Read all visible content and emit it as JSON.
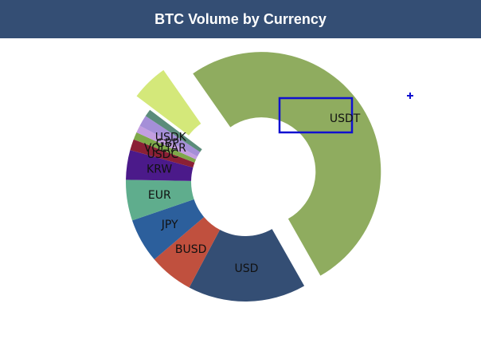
{
  "chart_data": {
    "type": "donut",
    "title": "BTC Volume by Currency",
    "categories": [
      "USDT",
      "USD",
      "BUSD",
      "JPY",
      "EUR",
      "KRW",
      "USDC",
      "VOLTAR",
      "GBP",
      "USDK",
      null,
      null
    ],
    "values": [
      51.5,
      16,
      6,
      6,
      5.5,
      4,
      1.5,
      1,
      1,
      1.5,
      1,
      5
    ],
    "colors": [
      "#8fac5f",
      "#344e74",
      "#c0503e",
      "#2c5f9c",
      "#5fad8d",
      "#4b1a8a",
      "#8b2035",
      "#7fa84a",
      "#c39ee0",
      "#a58fd8",
      "#5b8c7a",
      "#d4e87a"
    ],
    "explode": [
      true,
      false,
      false,
      false,
      false,
      false,
      false,
      false,
      false,
      false,
      false,
      true
    ]
  }
}
